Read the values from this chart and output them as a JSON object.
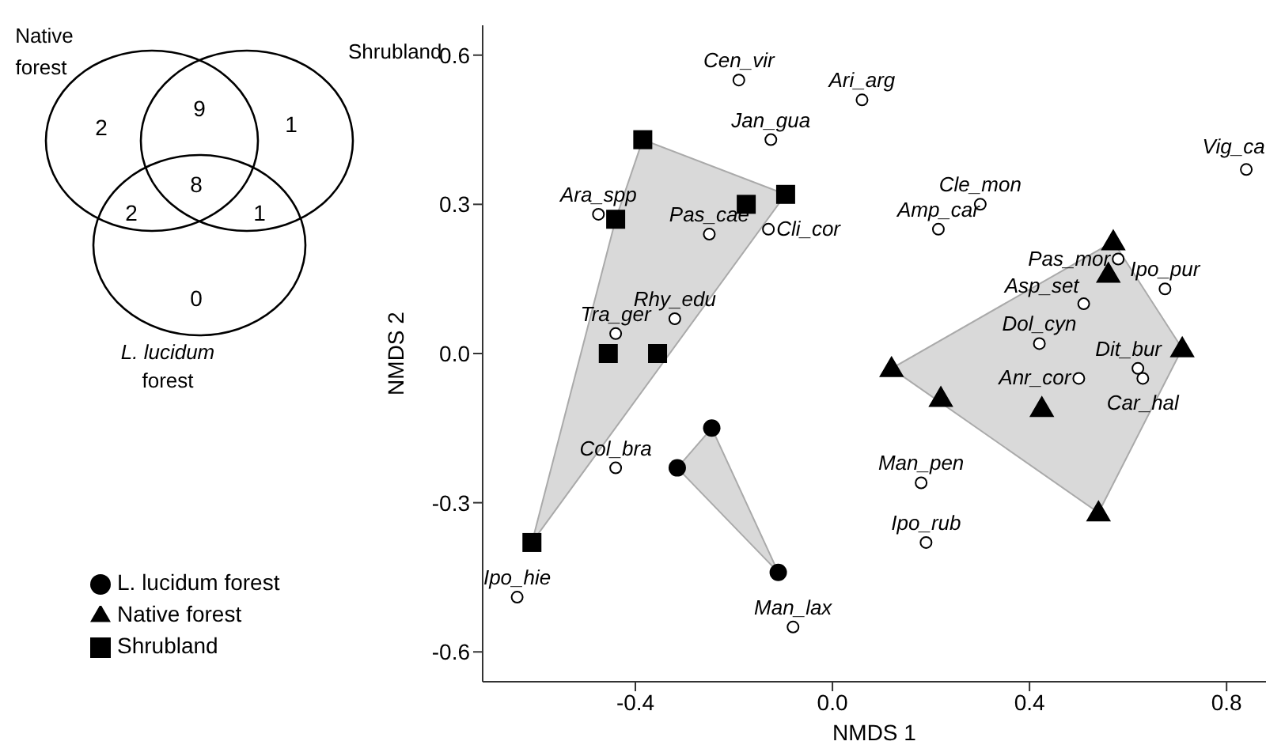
{
  "chart_data": [
    {
      "type": "other",
      "annotations": [
        "Native forest",
        "Shrubland",
        "L. lucidum forest",
        "2",
        "1",
        "0",
        "9",
        "2",
        "1",
        "8"
      ]
    },
    {
      "type": "scatter",
      "xlabel": "NMDS 1",
      "ylabel": "NMDS 2",
      "xlim": [
        -0.71,
        0.88
      ],
      "ylim": [
        -0.66,
        0.66
      ],
      "xticks": [
        -0.4,
        {
          "value": 0,
          "label": "0.0"
        },
        0.4,
        0.8
      ],
      "yticks": [
        -0.6,
        -0.3,
        {
          "value": 0,
          "label": "0.0"
        },
        0.3,
        0.6
      ],
      "grid": false,
      "legend": "bottom left",
      "series": [
        {
          "name": "L. lucidum forest",
          "color": "#000000",
          "marker": "circle",
          "x": [
            -0.245,
            -0.315,
            -0.11
          ],
          "values": [
            -0.15,
            -0.23,
            -0.44
          ]
        },
        {
          "name": "Native forest",
          "color": "#000000",
          "marker": "triangle",
          "x": [
            0.57,
            0.56,
            0.71,
            0.12,
            0.22,
            0.425,
            0.54
          ],
          "values": [
            0.225,
            0.16,
            0.01,
            -0.03,
            -0.09,
            -0.11,
            -0.32
          ]
        },
        {
          "name": "Shrubland",
          "color": "#000000",
          "marker": "square",
          "x": [
            -0.385,
            -0.095,
            -0.175,
            -0.44,
            -0.455,
            -0.355,
            -0.61
          ],
          "values": [
            0.43,
            0.32,
            0.3,
            0.27,
            0.0,
            0.0,
            -0.38
          ]
        },
        {
          "color": "#000000",
          "marker": "circle",
          "x": [
            -0.19,
            0.06,
            -0.125,
            -0.475,
            -0.25,
            -0.13,
            -0.32,
            -0.44,
            -0.44,
            -0.64,
            -0.08,
            0.84,
            0.3,
            0.215,
            0.58,
            0.51,
            0.675,
            0.42,
            0.5,
            0.62,
            0.63,
            0.18,
            0.19
          ],
          "values": [
            0.55,
            0.51,
            0.43,
            0.28,
            0.24,
            0.25,
            0.07,
            0.04,
            -0.23,
            -0.49,
            -0.55,
            0.37,
            0.3,
            0.25,
            0.19,
            0.1,
            0.13,
            0.02,
            -0.05,
            -0.03,
            -0.05,
            -0.26,
            -0.38
          ]
        }
      ],
      "annotations": [
        {
          "text": "Cen_vir",
          "x": -0.19,
          "y": 0.55
        },
        {
          "text": "Ari_arg",
          "x": 0.06,
          "y": 0.51
        },
        {
          "text": "Jan_gua",
          "x": -0.125,
          "y": 0.43
        },
        {
          "text": "Ara_spp",
          "x": -0.475,
          "y": 0.28
        },
        {
          "text": "Pas_cae",
          "x": -0.25,
          "y": 0.24
        },
        {
          "text": "Cli_cor",
          "x": -0.13,
          "y": 0.25
        },
        {
          "text": "Rhy_edu",
          "x": -0.32,
          "y": 0.07
        },
        {
          "text": "Tra_ger",
          "x": -0.44,
          "y": 0.04
        },
        {
          "text": "Col_bra",
          "x": -0.44,
          "y": -0.23
        },
        {
          "text": "Ipo_hie",
          "x": -0.64,
          "y": -0.49
        },
        {
          "text": "Man_lax",
          "x": -0.08,
          "y": -0.55
        },
        {
          "text": "Vig_ca",
          "x": 0.84,
          "y": 0.37
        },
        {
          "text": "Cle_mon",
          "x": 0.3,
          "y": 0.3
        },
        {
          "text": "Amp_car",
          "x": 0.215,
          "y": 0.25
        },
        {
          "text": "Pas_mor",
          "x": 0.58,
          "y": 0.19
        },
        {
          "text": "Asp_set",
          "x": 0.51,
          "y": 0.1
        },
        {
          "text": "Ipo_pur",
          "x": 0.675,
          "y": 0.13
        },
        {
          "text": "Dol_cyn",
          "x": 0.42,
          "y": 0.02
        },
        {
          "text": "Anr_cor",
          "x": 0.5,
          "y": -0.05
        },
        {
          "text": "Dit_bur",
          "x": 0.62,
          "y": -0.03
        },
        {
          "text": "Car_hal",
          "x": 0.63,
          "y": -0.05
        },
        {
          "text": "Man_pen",
          "x": 0.18,
          "y": -0.26
        },
        {
          "text": "Ipo_rub",
          "x": 0.19,
          "y": -0.38
        }
      ]
    }
  ]
}
